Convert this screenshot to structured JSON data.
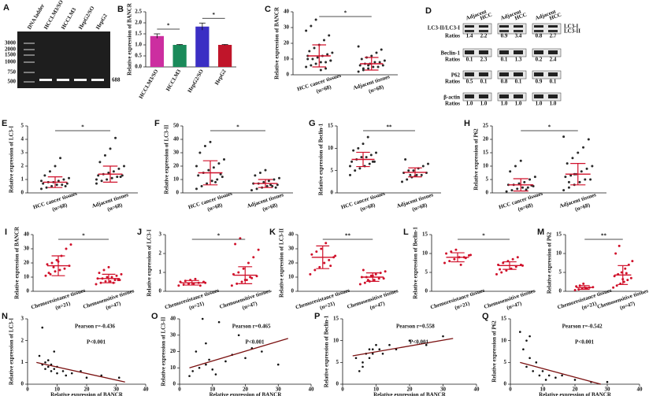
{
  "gel": {
    "letter": "A",
    "lanes": [
      "DNA ladder",
      "HCCLM3/SO",
      "HCCLM3",
      "HepG2/SO",
      "HepG2"
    ],
    "markers": [
      3000,
      2000,
      1500,
      1000,
      750,
      500
    ],
    "marker_colors": [
      "#111",
      "#111",
      "#d0102a",
      "#111",
      "#111",
      "#d0102a"
    ],
    "product": "688",
    "product_color": "#d0102a"
  },
  "blot": {
    "letter": "D",
    "header": [
      "Adjacent",
      "HCC",
      "Adjacent",
      "HCC",
      "Adjacent",
      "HCC"
    ],
    "rows": [
      {
        "label": "LC3-II/LC3-I",
        "sub": "Ratios",
        "values": [
          "1.4",
          "2.2",
          "0.9",
          "3.4",
          "0.8",
          "2.7"
        ]
      },
      {
        "label": "Beclin-1",
        "sub": "Ratios",
        "values": [
          "0.1",
          "2.3",
          "0.1",
          "1.3",
          "0.2",
          "2.4"
        ]
      },
      {
        "label": "P62",
        "sub": "Ratios",
        "values": [
          "0.5",
          "0.1",
          "0.8",
          "0.1",
          "0.9",
          "0.1"
        ]
      },
      {
        "label": "β-actin",
        "sub": "Ratios",
        "values": [
          "1.0",
          "1.0",
          "1.0",
          "1.0",
          "1.0",
          "1.0"
        ]
      }
    ],
    "side_labels": [
      "LC3-I",
      "LC3-II"
    ]
  },
  "chart_data": [
    {
      "type": "bar",
      "letter": "B",
      "ylabel": "Relative expression of BANCR",
      "categories": [
        "HCCLM3/SO",
        "HCCLM3",
        "HepG2/SO",
        "HepG2"
      ],
      "values": [
        1.4,
        1.0,
        1.83,
        1.0
      ],
      "errors": [
        0.1,
        0.02,
        0.16,
        0.02
      ],
      "colors": [
        "#cc2ea0",
        "#1a8a5a",
        "#3b2fc4",
        "#c0152a"
      ],
      "ylim": [
        0,
        2.5
      ],
      "yticks": [
        {
          "value": 0,
          "label": "0.0"
        },
        0.5,
        {
          "value": 1,
          "label": "1.0"
        },
        1.5,
        {
          "value": 2,
          "label": "2.0"
        },
        2.5
      ],
      "annotations": [
        "*",
        "*"
      ]
    },
    {
      "type": "dotplot",
      "letter": "C",
      "ylabel": "Relative expression of BANCR",
      "categories": [
        "HCC cancer tissues",
        "Adjacent tissues"
      ],
      "n_labels": [
        "(n=68)",
        "(n=68)"
      ],
      "color": "#2a2a2a",
      "bar_color": "#d0102a",
      "ylim": [
        0,
        40
      ],
      "yticks": [
        0,
        10,
        20,
        30,
        40
      ],
      "annotation": "*",
      "groups": [
        {
          "values": [
            5,
            6,
            7,
            8,
            8,
            9,
            10,
            10,
            11,
            12,
            13,
            14,
            15,
            17,
            19,
            22,
            25,
            28,
            31,
            35,
            3,
            4,
            9,
            12
          ],
          "mean": 12,
          "sd": 7
        },
        {
          "values": [
            2,
            3,
            4,
            5,
            5,
            6,
            6,
            7,
            7,
            8,
            8,
            9,
            10,
            11,
            12,
            14,
            16,
            18,
            4,
            6
          ],
          "mean": 7,
          "sd": 4
        }
      ]
    },
    {
      "type": "dotplot",
      "letter": "E",
      "ylabel": "Relative expression of LC3-I",
      "categories": [
        "HCC cancer tissues",
        "Adjacent tissues"
      ],
      "n_labels": [
        "(n=68)",
        "(n=68)"
      ],
      "color": "#2a2a2a",
      "bar_color": "#d0102a",
      "ylim": [
        0,
        5
      ],
      "yticks": [
        0,
        1,
        2,
        3,
        4,
        5
      ],
      "annotation": "*",
      "groups": [
        {
          "values": [
            0.3,
            0.4,
            0.5,
            0.6,
            0.6,
            0.7,
            0.7,
            0.8,
            0.8,
            0.9,
            1.0,
            1.1,
            1.3,
            1.6,
            2.0,
            2.6,
            0.5,
            0.9
          ],
          "mean": 0.8,
          "sd": 0.4
        },
        {
          "values": [
            0.7,
            0.9,
            1.0,
            1.1,
            1.2,
            1.3,
            1.3,
            1.4,
            1.5,
            1.6,
            1.8,
            2.0,
            2.3,
            2.8,
            3.3,
            4.1,
            1.2,
            1.0
          ],
          "mean": 1.4,
          "sd": 0.6
        }
      ]
    },
    {
      "type": "dotplot",
      "letter": "F",
      "ylabel": "Relative expression of LC3-II",
      "categories": [
        "HCC cancer tissues",
        "Adjacent tissues"
      ],
      "n_labels": [
        "(n=68)",
        "(n=68)"
      ],
      "color": "#2a2a2a",
      "bar_color": "#d0102a",
      "ylim": [
        0,
        50
      ],
      "yticks": [
        0,
        10,
        20,
        30,
        40,
        50
      ],
      "annotation": "*",
      "groups": [
        {
          "values": [
            3,
            5,
            7,
            9,
            10,
            12,
            13,
            15,
            17,
            19,
            22,
            25,
            30,
            35,
            38,
            8,
            14,
            20
          ],
          "mean": 15,
          "sd": 9
        },
        {
          "values": [
            2,
            3,
            4,
            5,
            5,
            6,
            7,
            7,
            8,
            9,
            10,
            11,
            13,
            15,
            17,
            6,
            4
          ],
          "mean": 7,
          "sd": 3
        }
      ]
    },
    {
      "type": "dotplot",
      "letter": "G",
      "ylabel": "Relative expression of Beclin-1",
      "categories": [
        "HCC cancer tissues",
        "Adjacent tissues"
      ],
      "n_labels": [
        "(n=68)",
        "(n=68)"
      ],
      "color": "#2a2a2a",
      "bar_color": "#d0102a",
      "ylim": [
        0,
        15
      ],
      "yticks": [
        0,
        5,
        10,
        15
      ],
      "annotation": "**",
      "groups": [
        {
          "values": [
            4,
            5,
            5.5,
            6,
            6.5,
            7,
            7,
            7.5,
            8,
            8,
            8.5,
            9,
            9.5,
            10,
            11,
            12.5,
            7,
            6
          ],
          "mean": 7.5,
          "sd": 1.6
        },
        {
          "values": [
            2.5,
            3,
            3.5,
            4,
            4,
            4.5,
            4.5,
            5,
            5,
            5.5,
            6,
            6.5,
            7.5,
            4,
            3.8
          ],
          "mean": 4.6,
          "sd": 1
        }
      ]
    },
    {
      "type": "dotplot",
      "letter": "H",
      "ylabel": "Relative expression of P62",
      "categories": [
        "HCC cancer tissues",
        "Adjacent tissues"
      ],
      "n_labels": [
        "(n=68)",
        "(n=68)"
      ],
      "color": "#2a2a2a",
      "bar_color": "#d0102a",
      "ylim": [
        0,
        25
      ],
      "yticks": [
        0,
        5,
        10,
        15,
        20,
        25
      ],
      "annotation": "*",
      "groups": [
        {
          "values": [
            0.5,
            1,
            1.5,
            2,
            2,
            2.5,
            3,
            3,
            3.5,
            4,
            5,
            6,
            8,
            10,
            12,
            1.2,
            2.8
          ],
          "mean": 3,
          "sd": 2.3
        },
        {
          "values": [
            1,
            2,
            3,
            4,
            5,
            5,
            6,
            6.5,
            7,
            8,
            9,
            10,
            11,
            13,
            15,
            17,
            20,
            21,
            4,
            7
          ],
          "mean": 7,
          "sd": 4
        }
      ]
    },
    {
      "type": "dotplot",
      "letter": "I",
      "ylabel": "Relative expression of BANCR",
      "categories": [
        "Chemoresistance tissues",
        "Chemosensitive tissues"
      ],
      "n_labels": [
        "(n=21)",
        "(n=47)"
      ],
      "color": "#d0102a",
      "bar_color": "#d0102a",
      "ylim": [
        0,
        40
      ],
      "yticks": [
        0,
        10,
        20,
        30,
        40
      ],
      "annotation": "*",
      "groups": [
        {
          "values": [
            11,
            12,
            14,
            15,
            16,
            18,
            19,
            20,
            22,
            25,
            30,
            33,
            13,
            17,
            21
          ],
          "mean": 18,
          "sd": 7
        },
        {
          "values": [
            5,
            6,
            7,
            7,
            8,
            8,
            9,
            9,
            10,
            10,
            11,
            12,
            13,
            15,
            17,
            6,
            8
          ],
          "mean": 9,
          "sd": 3
        }
      ]
    },
    {
      "type": "dotplot",
      "letter": "J",
      "ylabel": "Relative expression of LC3-I",
      "categories": [
        "Chemoresistance tissues",
        "Chemosensitive tissues"
      ],
      "n_labels": [
        "(n=21)",
        "(n=47)"
      ],
      "color": "#d0102a",
      "bar_color": "#d0102a",
      "ylim": [
        0,
        3
      ],
      "yticks": [
        0,
        1,
        2,
        3
      ],
      "annotation": "*",
      "groups": [
        {
          "values": [
            0.3,
            0.35,
            0.4,
            0.4,
            0.45,
            0.5,
            0.5,
            0.55,
            0.6,
            0.65,
            0.3,
            0.45
          ],
          "mean": 0.45,
          "sd": 0.12
        },
        {
          "values": [
            0.3,
            0.4,
            0.5,
            0.6,
            0.7,
            0.8,
            0.9,
            1.0,
            1.2,
            1.5,
            1.8,
            2.2,
            2.5,
            2.8,
            0.6,
            0.75
          ],
          "mean": 0.85,
          "sd": 0.45
        }
      ]
    },
    {
      "type": "dotplot",
      "letter": "K",
      "ylabel": "Relative expression of LC3-II",
      "categories": [
        "Chemoresistance tissues",
        "Chemosensitive tissues"
      ],
      "n_labels": [
        "(n=21)",
        "(n=47)"
      ],
      "color": "#d0102a",
      "bar_color": "#d0102a",
      "ylim": [
        0,
        40
      ],
      "yticks": [
        0,
        10,
        20,
        30,
        40
      ],
      "annotation": "**",
      "groups": [
        {
          "values": [
            12,
            15,
            17,
            20,
            22,
            24,
            26,
            28,
            30,
            34,
            18,
            25
          ],
          "mean": 24,
          "sd": 8
        },
        {
          "values": [
            5,
            6,
            7,
            8,
            9,
            9,
            10,
            10,
            11,
            12,
            13,
            14,
            15,
            8,
            11
          ],
          "mean": 10,
          "sd": 3
        }
      ]
    },
    {
      "type": "dotplot",
      "letter": "L",
      "ylabel": "Relative expression of Beclin-1",
      "categories": [
        "Chemoresistance tissues",
        "Chemosensitive tissues"
      ],
      "n_labels": [
        "(n=21)",
        "(n=47)"
      ],
      "color": "#d0102a",
      "bar_color": "#d0102a",
      "ylim": [
        0,
        15
      ],
      "yticks": [
        0,
        5,
        10,
        15
      ],
      "annotation": "*",
      "groups": [
        {
          "values": [
            7.5,
            8,
            8.5,
            9,
            9,
            9.5,
            10,
            10.5,
            11,
            7,
            8.8,
            9.6
          ],
          "mean": 9,
          "sd": 1.2
        },
        {
          "values": [
            4.5,
            5,
            5.5,
            6,
            6.5,
            7,
            7,
            7.5,
            8,
            8.5,
            9,
            6.8,
            5.8
          ],
          "mean": 6.8,
          "sd": 1
        }
      ]
    },
    {
      "type": "dotplot",
      "letter": "M",
      "ylabel": "Relative expression of P62",
      "categories": [
        "Chemoresistance tissues",
        "Chemosensitive tissues"
      ],
      "n_labels": [
        "(n=21)",
        "(n=47)"
      ],
      "color": "#d0102a",
      "bar_color": "#d0102a",
      "ylim": [
        0,
        15
      ],
      "yticks": [
        0,
        5,
        10,
        15
      ],
      "annotation": "**",
      "groups": [
        {
          "values": [
            0.3,
            0.5,
            0.7,
            0.9,
            1.0,
            1.1,
            1.3,
            1.5,
            2.0,
            0.8
          ],
          "mean": 1.0,
          "sd": 0.5
        },
        {
          "values": [
            1,
            1.5,
            2,
            2.5,
            3,
            3.5,
            4,
            4.5,
            5,
            6,
            7,
            8,
            10,
            12,
            3.2,
            4.8
          ],
          "mean": 4.3,
          "sd": 2.5
        }
      ]
    },
    {
      "type": "scatter",
      "letter": "N",
      "ylabel": "Relative expression of LC3-I",
      "xlabel": "Relative expression of BANCR",
      "color": "#111",
      "line_color": "#7a1010",
      "x": [
        4,
        5,
        6,
        6,
        7,
        7,
        8,
        8,
        9,
        10,
        10,
        12,
        13,
        15,
        18,
        20,
        25,
        31,
        5,
        9
      ],
      "y": [
        1.3,
        0.9,
        1.0,
        0.7,
        0.8,
        1.1,
        0.6,
        0.9,
        0.7,
        0.5,
        0.8,
        0.6,
        0.4,
        0.5,
        0.6,
        0.3,
        0.4,
        0.3,
        2.6,
        1.5
      ],
      "fit": {
        "x": [
          3,
          33
        ],
        "y": [
          1.0,
          0.1
        ]
      },
      "xlim": [
        0,
        40
      ],
      "xticks": [
        0,
        10,
        20,
        30,
        40
      ],
      "ylim": [
        0,
        3
      ],
      "yticks": [
        0,
        1,
        2,
        3
      ],
      "pearson": "Pearson r=-0.436",
      "p": "P<0.001"
    },
    {
      "type": "scatter",
      "letter": "O",
      "ylabel": "Relative expression of LC3-II",
      "xlabel": "Relative expression of BANCR",
      "color": "#111",
      "line_color": "#7a1010",
      "x": [
        3,
        4,
        5,
        6,
        7,
        8,
        9,
        10,
        12,
        14,
        16,
        18,
        20,
        22,
        25,
        30,
        8,
        11
      ],
      "y": [
        5,
        8,
        20,
        10,
        40,
        12,
        15,
        9,
        38,
        14,
        18,
        30,
        16,
        22,
        20,
        12,
        25,
        6
      ],
      "fit": {
        "x": [
          3,
          33
        ],
        "y": [
          10,
          28
        ]
      },
      "xlim": [
        0,
        40
      ],
      "xticks": [
        0,
        10,
        20,
        30,
        40
      ],
      "ylim": [
        0,
        40
      ],
      "yticks": [
        0,
        10,
        20,
        30,
        40
      ],
      "pearson": "Pearson r=0.465",
      "p": "P<0.001"
    },
    {
      "type": "scatter",
      "letter": "P",
      "ylabel": "Relative expression of Beclin-1",
      "xlabel": "Relative expression of BANCR",
      "color": "#111",
      "line_color": "#7a1010",
      "x": [
        4,
        5,
        6,
        7,
        8,
        8,
        9,
        10,
        11,
        12,
        14,
        16,
        20,
        25,
        30,
        6,
        9
      ],
      "y": [
        6,
        3,
        5,
        7,
        6,
        8,
        7,
        9,
        8,
        7,
        9,
        8,
        10,
        9,
        11,
        4,
        8
      ],
      "fit": {
        "x": [
          3,
          33
        ],
        "y": [
          6.5,
          10.5
        ]
      },
      "xlim": [
        0,
        40
      ],
      "xticks": [
        0,
        10,
        20,
        30,
        40
      ],
      "ylim": [
        0,
        15
      ],
      "yticks": [
        0,
        5,
        10,
        15
      ],
      "pearson": "Pearson r=0.558",
      "p": "P<0.001"
    },
    {
      "type": "scatter",
      "letter": "Q",
      "ylabel": "Relative expression of P62",
      "xlabel": "Relative expression of BANCR",
      "color": "#111",
      "line_color": "#7a1010",
      "x": [
        3,
        4,
        5,
        5,
        6,
        7,
        8,
        9,
        10,
        11,
        12,
        14,
        16,
        20,
        25,
        30,
        6
      ],
      "y": [
        12,
        8,
        10,
        4,
        6,
        3,
        5,
        2,
        3,
        1,
        2,
        1.5,
        2,
        1,
        0.5,
        0.5,
        11
      ],
      "fit": {
        "x": [
          3,
          28
        ],
        "y": [
          5,
          0
        ]
      },
      "xlim": [
        0,
        40
      ],
      "xticks": [
        0,
        10,
        20,
        30,
        40
      ],
      "ylim": [
        0,
        15
      ],
      "yticks": [
        0,
        5,
        10,
        15
      ],
      "pearson": "Pearson r=-0.542",
      "p": "P<0.001"
    }
  ]
}
